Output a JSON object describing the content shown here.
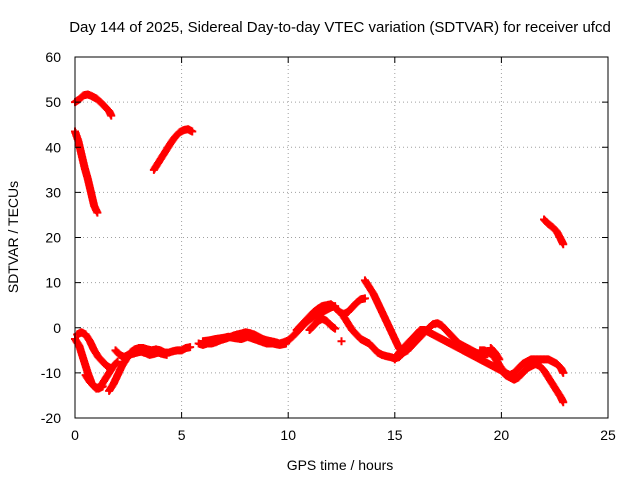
{
  "chart_data": {
    "type": "scatter",
    "title": "Day 144 of 2025, Sidereal Day-to-day VTEC variation (SDTVAR) for receiver ufcd",
    "xlabel": "GPS time / hours",
    "ylabel": "SDTVAR / TECUs",
    "xlim": [
      0,
      25
    ],
    "ylim": [
      -20,
      60
    ],
    "xticks": [
      0,
      5,
      10,
      15,
      20,
      25
    ],
    "yticks": [
      -20,
      -10,
      0,
      10,
      20,
      30,
      40,
      50,
      60
    ],
    "grid": true,
    "grid_style": "dotted",
    "legend": "none",
    "marker": "plus",
    "series_color": "#ff0000",
    "series": [
      {
        "name": "s1",
        "points": [
          [
            0.0,
            50.0
          ],
          [
            0.2,
            50.6
          ],
          [
            0.4,
            51.5
          ],
          [
            0.6,
            51.7
          ],
          [
            0.8,
            51.3
          ],
          [
            1.0,
            50.8
          ],
          [
            1.2,
            50.0
          ],
          [
            1.4,
            49.0
          ],
          [
            1.6,
            48.0
          ],
          [
            1.7,
            47.0
          ]
        ]
      },
      {
        "name": "s2",
        "points": [
          [
            0.0,
            43.5
          ],
          [
            0.15,
            41.5
          ],
          [
            0.3,
            38.5
          ],
          [
            0.45,
            35.5
          ],
          [
            0.6,
            33.0
          ],
          [
            0.75,
            30.0
          ],
          [
            0.9,
            27.0
          ],
          [
            1.05,
            25.5
          ]
        ]
      },
      {
        "name": "s3",
        "points": [
          [
            3.7,
            35.0
          ],
          [
            3.9,
            36.5
          ],
          [
            4.1,
            38.0
          ],
          [
            4.3,
            39.5
          ],
          [
            4.5,
            41.0
          ],
          [
            4.7,
            42.3
          ],
          [
            4.9,
            43.3
          ],
          [
            5.1,
            43.8
          ],
          [
            5.3,
            44.0
          ],
          [
            5.5,
            43.5
          ]
        ]
      },
      {
        "name": "s4",
        "points": [
          [
            22.0,
            24.0
          ],
          [
            22.2,
            23.0
          ],
          [
            22.4,
            22.3
          ],
          [
            22.6,
            21.3
          ],
          [
            22.8,
            19.5
          ],
          [
            22.9,
            18.5
          ]
        ]
      },
      {
        "name": "s5",
        "points": [
          [
            0.0,
            -2.5
          ],
          [
            0.2,
            -4.0
          ],
          [
            0.4,
            -7.0
          ],
          [
            0.6,
            -10.0
          ],
          [
            0.8,
            -12.5
          ],
          [
            1.0,
            -13.5
          ],
          [
            1.2,
            -13.0
          ],
          [
            1.4,
            -11.5
          ],
          [
            1.6,
            -10.0
          ],
          [
            1.8,
            -8.5
          ],
          [
            2.0,
            -7.5
          ]
        ]
      },
      {
        "name": "s6",
        "points": [
          [
            0.1,
            -1.5
          ],
          [
            0.3,
            -1.0
          ],
          [
            0.5,
            -1.5
          ],
          [
            0.7,
            -3.0
          ],
          [
            0.9,
            -5.0
          ],
          [
            1.1,
            -6.5
          ],
          [
            1.3,
            -7.5
          ],
          [
            1.5,
            -8.5
          ],
          [
            1.7,
            -9.0
          ]
        ]
      },
      {
        "name": "s7",
        "points": [
          [
            0.5,
            -10.5
          ],
          [
            0.7,
            -12.0
          ],
          [
            0.9,
            -13.0
          ],
          [
            1.1,
            -13.5
          ],
          [
            1.3,
            -13.0
          ]
        ]
      },
      {
        "name": "s8",
        "points": [
          [
            1.6,
            -14.0
          ],
          [
            1.8,
            -12.5
          ],
          [
            2.0,
            -10.5
          ],
          [
            2.2,
            -8.5
          ],
          [
            2.4,
            -7.0
          ],
          [
            2.6,
            -5.5
          ],
          [
            2.8,
            -4.8
          ],
          [
            3.0,
            -4.5
          ],
          [
            3.2,
            -4.5
          ],
          [
            3.4,
            -4.8
          ],
          [
            3.6,
            -5.0
          ],
          [
            3.8,
            -4.8
          ],
          [
            4.0,
            -5.0
          ],
          [
            4.2,
            -5.5
          ],
          [
            4.4,
            -5.5
          ],
          [
            4.6,
            -5.2
          ],
          [
            4.8,
            -5.0
          ],
          [
            5.0,
            -5.0
          ],
          [
            5.2,
            -4.5
          ],
          [
            5.4,
            -4.3
          ]
        ]
      },
      {
        "name": "s9",
        "points": [
          [
            1.9,
            -5.0
          ],
          [
            2.1,
            -6.0
          ],
          [
            2.3,
            -6.5
          ],
          [
            2.5,
            -6.0
          ],
          [
            2.7,
            -5.8
          ],
          [
            2.9,
            -5.5
          ],
          [
            3.1,
            -5.3
          ],
          [
            3.3,
            -5.6
          ],
          [
            3.5,
            -6.0
          ],
          [
            3.7,
            -5.8
          ],
          [
            3.9,
            -5.5
          ],
          [
            4.1,
            -5.8
          ],
          [
            4.3,
            -6.0
          ]
        ]
      },
      {
        "name": "s10",
        "points": [
          [
            5.8,
            -3.5
          ],
          [
            6.0,
            -3.8
          ],
          [
            6.2,
            -3.5
          ],
          [
            6.4,
            -3.5
          ],
          [
            6.6,
            -3.2
          ],
          [
            6.8,
            -2.8
          ],
          [
            7.0,
            -2.5
          ],
          [
            7.2,
            -2.2
          ],
          [
            7.4,
            -1.8
          ],
          [
            7.6,
            -1.5
          ],
          [
            7.8,
            -1.3
          ],
          [
            8.0,
            -1.0
          ],
          [
            8.2,
            -1.2
          ],
          [
            8.4,
            -1.5
          ],
          [
            8.6,
            -2.0
          ],
          [
            8.8,
            -2.5
          ],
          [
            9.0,
            -2.8
          ],
          [
            9.2,
            -3.0
          ],
          [
            9.4,
            -3.2
          ],
          [
            9.6,
            -3.5
          ],
          [
            9.8,
            -3.2
          ],
          [
            10.0,
            -2.8
          ],
          [
            10.2,
            -2.0
          ],
          [
            10.4,
            -1.0
          ],
          [
            10.6,
            0.0
          ],
          [
            10.8,
            1.0
          ],
          [
            11.0,
            1.8
          ],
          [
            11.2,
            2.5
          ],
          [
            11.4,
            3.0
          ],
          [
            11.6,
            3.5
          ],
          [
            11.8,
            4.0
          ],
          [
            12.0,
            4.5
          ],
          [
            12.2,
            4.8
          ]
        ]
      },
      {
        "name": "s11",
        "points": [
          [
            6.0,
            -3.0
          ],
          [
            6.3,
            -2.8
          ],
          [
            6.6,
            -2.5
          ],
          [
            6.9,
            -2.3
          ],
          [
            7.2,
            -2.0
          ],
          [
            7.5,
            -2.3
          ],
          [
            7.8,
            -2.5
          ],
          [
            8.1,
            -2.0
          ],
          [
            8.4,
            -2.5
          ],
          [
            8.7,
            -3.0
          ],
          [
            9.0,
            -3.5
          ],
          [
            9.3,
            -3.5
          ],
          [
            9.6,
            -3.8
          ],
          [
            9.9,
            -3.5
          ]
        ]
      },
      {
        "name": "s12",
        "points": [
          [
            10.4,
            -0.5
          ],
          [
            10.6,
            0.5
          ],
          [
            10.8,
            1.5
          ],
          [
            11.0,
            2.5
          ],
          [
            11.2,
            3.5
          ],
          [
            11.4,
            4.2
          ],
          [
            11.6,
            4.8
          ],
          [
            11.8,
            5.0
          ],
          [
            12.0,
            5.2
          ],
          [
            12.2,
            4.5
          ],
          [
            12.4,
            3.5
          ],
          [
            12.6,
            3.0
          ],
          [
            12.8,
            3.5
          ],
          [
            13.0,
            4.5
          ],
          [
            13.2,
            5.5
          ],
          [
            13.4,
            6.3
          ],
          [
            13.6,
            6.5
          ]
        ]
      },
      {
        "name": "s13",
        "points": [
          [
            11.0,
            -0.5
          ],
          [
            11.2,
            0.5
          ],
          [
            11.4,
            1.5
          ],
          [
            11.6,
            2.0
          ],
          [
            11.8,
            1.5
          ],
          [
            12.0,
            0.5
          ],
          [
            12.2,
            -0.2
          ]
        ]
      },
      {
        "name": "s14",
        "points": [
          [
            12.5,
            -3.0
          ]
        ]
      },
      {
        "name": "s15",
        "points": [
          [
            12.6,
            2.5
          ],
          [
            12.8,
            1.0
          ],
          [
            13.0,
            -0.5
          ],
          [
            13.2,
            -1.5
          ],
          [
            13.4,
            -2.5
          ],
          [
            13.6,
            -3.0
          ],
          [
            13.8,
            -3.5
          ],
          [
            14.0,
            -4.5
          ],
          [
            14.2,
            -5.5
          ],
          [
            14.4,
            -6.0
          ],
          [
            14.6,
            -6.3
          ],
          [
            14.8,
            -6.5
          ],
          [
            15.0,
            -6.8
          ],
          [
            15.2,
            -6.5
          ],
          [
            15.4,
            -5.5
          ],
          [
            15.6,
            -4.5
          ]
        ]
      },
      {
        "name": "s16",
        "points": [
          [
            13.6,
            10.5
          ],
          [
            13.8,
            9.0
          ],
          [
            14.0,
            7.5
          ],
          [
            14.2,
            5.5
          ],
          [
            14.4,
            3.5
          ],
          [
            14.6,
            1.5
          ],
          [
            14.8,
            -0.5
          ],
          [
            15.0,
            -2.5
          ],
          [
            15.2,
            -4.5
          ],
          [
            15.4,
            -5.5
          ],
          [
            15.6,
            -5.0
          ],
          [
            15.8,
            -4.0
          ],
          [
            16.0,
            -3.0
          ],
          [
            16.2,
            -2.0
          ],
          [
            16.4,
            -1.0
          ],
          [
            16.6,
            0.0
          ],
          [
            16.8,
            0.8
          ],
          [
            17.0,
            1.0
          ],
          [
            17.2,
            0.5
          ],
          [
            17.4,
            -0.5
          ],
          [
            17.6,
            -1.5
          ],
          [
            17.8,
            -2.5
          ],
          [
            18.0,
            -3.5
          ],
          [
            18.2,
            -4.0
          ],
          [
            18.4,
            -4.5
          ],
          [
            18.6,
            -5.0
          ],
          [
            18.8,
            -5.5
          ],
          [
            19.0,
            -6.0
          ],
          [
            19.2,
            -6.5
          ]
        ]
      },
      {
        "name": "s17",
        "points": [
          [
            15.0,
            -7.0
          ],
          [
            15.2,
            -5.5
          ],
          [
            15.4,
            -4.5
          ],
          [
            15.6,
            -3.5
          ],
          [
            15.8,
            -2.5
          ],
          [
            16.0,
            -1.5
          ],
          [
            16.2,
            -0.5
          ],
          [
            16.4,
            -0.5
          ],
          [
            16.6,
            -1.0
          ],
          [
            16.8,
            -1.5
          ],
          [
            17.0,
            -2.0
          ],
          [
            17.2,
            -2.5
          ],
          [
            17.4,
            -3.0
          ],
          [
            17.6,
            -3.5
          ],
          [
            17.8,
            -4.0
          ],
          [
            18.0,
            -4.5
          ],
          [
            18.2,
            -5.0
          ],
          [
            18.4,
            -5.5
          ],
          [
            18.6,
            -6.0
          ],
          [
            18.8,
            -6.5
          ],
          [
            19.0,
            -7.0
          ],
          [
            19.2,
            -7.5
          ],
          [
            19.4,
            -8.0
          ],
          [
            19.6,
            -8.5
          ],
          [
            19.8,
            -9.0
          ],
          [
            20.0,
            -9.5
          ],
          [
            20.2,
            -10.5
          ],
          [
            20.4,
            -11.0
          ],
          [
            20.6,
            -11.5
          ],
          [
            20.8,
            -11.0
          ],
          [
            21.0,
            -10.0
          ],
          [
            21.2,
            -9.0
          ],
          [
            21.4,
            -8.5
          ],
          [
            21.6,
            -8.0
          ],
          [
            21.8,
            -8.5
          ],
          [
            22.0,
            -9.5
          ],
          [
            22.2,
            -11.0
          ],
          [
            22.4,
            -12.5
          ],
          [
            22.6,
            -14.0
          ],
          [
            22.8,
            -15.5
          ],
          [
            22.9,
            -16.5
          ]
        ]
      },
      {
        "name": "s18",
        "points": [
          [
            19.0,
            -5.0
          ],
          [
            19.2,
            -5.0
          ],
          [
            19.4,
            -5.5
          ],
          [
            19.6,
            -6.0
          ],
          [
            19.8,
            -7.5
          ],
          [
            20.0,
            -9.0
          ],
          [
            20.2,
            -10.0
          ],
          [
            20.4,
            -10.5
          ],
          [
            20.6,
            -10.0
          ],
          [
            20.8,
            -9.0
          ],
          [
            21.0,
            -8.0
          ],
          [
            21.2,
            -7.5
          ],
          [
            21.4,
            -7.0
          ],
          [
            21.6,
            -7.0
          ],
          [
            21.8,
            -7.0
          ],
          [
            22.0,
            -7.0
          ],
          [
            22.2,
            -7.0
          ],
          [
            22.4,
            -7.5
          ],
          [
            22.6,
            -8.0
          ],
          [
            22.8,
            -9.0
          ],
          [
            22.9,
            -10.0
          ]
        ]
      },
      {
        "name": "s19",
        "points": [
          [
            19.5,
            -4.5
          ],
          [
            19.7,
            -5.5
          ],
          [
            19.9,
            -7.0
          ]
        ]
      }
    ]
  }
}
